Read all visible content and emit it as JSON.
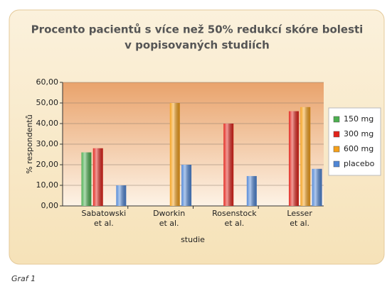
{
  "chart_data": {
    "type": "bar",
    "title": [
      "Procento pacientů s více než 50% redukcí skóre bolesti",
      "v popisovaných studiích"
    ],
    "caption": "Graf 1",
    "x_label": "studie",
    "y_label": "% respondentů",
    "categories": [
      [
        "Sabatowski",
        "et al."
      ],
      [
        "Dworkin",
        "et al."
      ],
      [
        "Rosenstock",
        "et al."
      ],
      [
        "Lesser",
        "et al."
      ]
    ],
    "series": [
      {
        "name": "150 mg",
        "color": "#4caf50",
        "values": [
          26,
          null,
          null,
          null
        ]
      },
      {
        "name": "300 mg",
        "color": "#e2231a",
        "values": [
          28,
          null,
          40,
          46
        ]
      },
      {
        "name": "600 mg",
        "color": "#f5a01a",
        "values": [
          null,
          50,
          null,
          48
        ]
      },
      {
        "name": "placebo",
        "color": "#4f86d6",
        "values": [
          10,
          20,
          14.5,
          18
        ]
      }
    ],
    "ylim": [
      0,
      60
    ],
    "yticks": [
      {
        "value": 0,
        "label": "0,00"
      },
      {
        "value": 10,
        "label": "10,00"
      },
      {
        "value": 20,
        "label": "20,00"
      },
      {
        "value": 30,
        "label": "30,00"
      },
      {
        "value": 40,
        "label": "40,00"
      },
      {
        "value": 50,
        "label": "50,00"
      },
      {
        "value": 60,
        "label": "60,00"
      }
    ],
    "grid": true,
    "legend": "right"
  }
}
